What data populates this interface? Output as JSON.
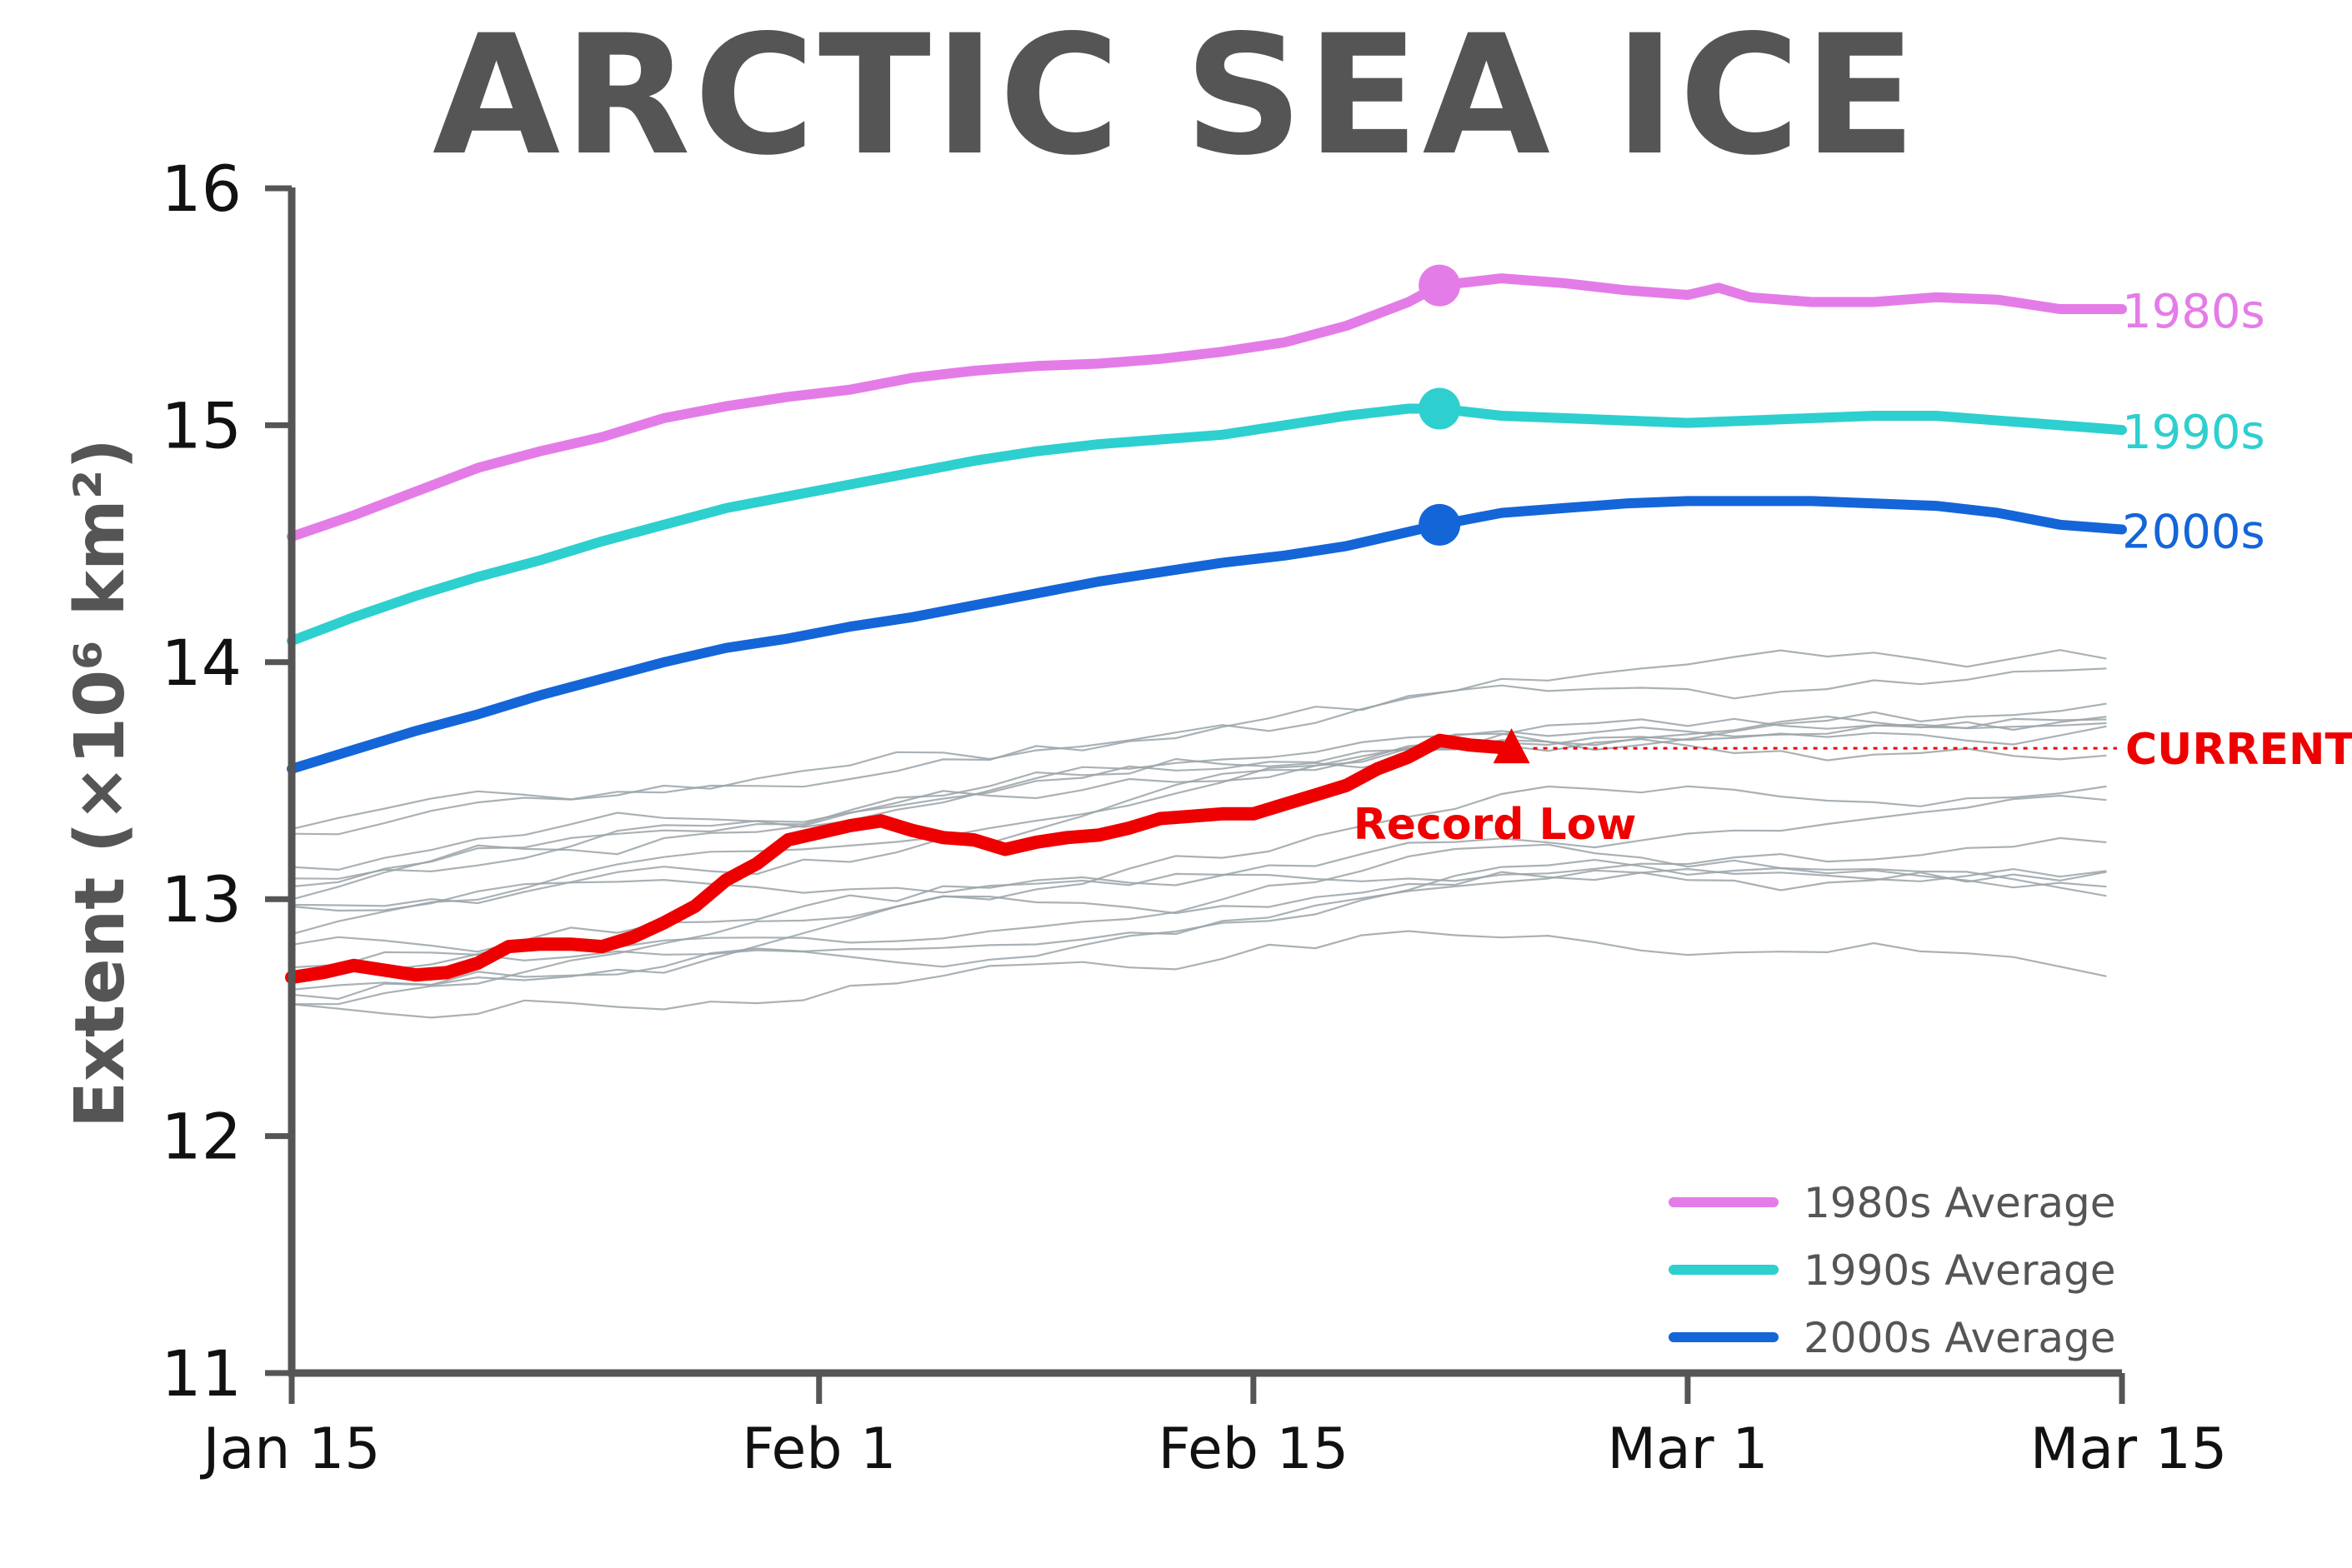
{
  "chart_data": {
    "type": "line",
    "title": "ARCTIC SEA ICE",
    "ylabel": "Extent (×10⁶ km²)",
    "ylim": [
      11,
      16
    ],
    "yticks": [
      "11",
      "12",
      "13",
      "14",
      "15",
      "16"
    ],
    "x_range_days": [
      0,
      59
    ],
    "xticks": [
      {
        "label": "Jan 15",
        "day": 0
      },
      {
        "label": "Feb 1",
        "day": 17
      },
      {
        "label": "Feb 15",
        "day": 31
      },
      {
        "label": "Mar 1",
        "day": 45
      },
      {
        "label": "Mar 15",
        "day": 59
      }
    ],
    "series": [
      {
        "name": "1980s Average",
        "end_label": "1980s",
        "color": "#e47ce8",
        "marker_day": 37,
        "points": [
          [
            0,
            14.53
          ],
          [
            2,
            14.62
          ],
          [
            4,
            14.72
          ],
          [
            6,
            14.82
          ],
          [
            8,
            14.89
          ],
          [
            10,
            14.95
          ],
          [
            12,
            15.03
          ],
          [
            14,
            15.08
          ],
          [
            16,
            15.12
          ],
          [
            18,
            15.15
          ],
          [
            20,
            15.2
          ],
          [
            22,
            15.23
          ],
          [
            24,
            15.25
          ],
          [
            26,
            15.26
          ],
          [
            28,
            15.28
          ],
          [
            30,
            15.31
          ],
          [
            32,
            15.35
          ],
          [
            34,
            15.42
          ],
          [
            36,
            15.52
          ],
          [
            37,
            15.59
          ],
          [
            39,
            15.62
          ],
          [
            41,
            15.6
          ],
          [
            43,
            15.57
          ],
          [
            45,
            15.55
          ],
          [
            46,
            15.58
          ],
          [
            47,
            15.54
          ],
          [
            49,
            15.52
          ],
          [
            51,
            15.52
          ],
          [
            53,
            15.54
          ],
          [
            55,
            15.53
          ],
          [
            57,
            15.49
          ],
          [
            59,
            15.49
          ]
        ]
      },
      {
        "name": "1990s Average",
        "end_label": "1990s",
        "color": "#2ecfcf",
        "marker_day": 37,
        "points": [
          [
            0,
            14.09
          ],
          [
            2,
            14.19
          ],
          [
            4,
            14.28
          ],
          [
            6,
            14.36
          ],
          [
            8,
            14.43
          ],
          [
            10,
            14.51
          ],
          [
            12,
            14.58
          ],
          [
            14,
            14.65
          ],
          [
            16,
            14.7
          ],
          [
            18,
            14.75
          ],
          [
            20,
            14.8
          ],
          [
            22,
            14.85
          ],
          [
            24,
            14.89
          ],
          [
            26,
            14.92
          ],
          [
            28,
            14.94
          ],
          [
            30,
            14.96
          ],
          [
            32,
            15.0
          ],
          [
            34,
            15.04
          ],
          [
            36,
            15.07
          ],
          [
            37,
            15.07
          ],
          [
            39,
            15.04
          ],
          [
            41,
            15.03
          ],
          [
            43,
            15.02
          ],
          [
            45,
            15.01
          ],
          [
            47,
            15.02
          ],
          [
            49,
            15.03
          ],
          [
            51,
            15.04
          ],
          [
            53,
            15.04
          ],
          [
            55,
            15.02
          ],
          [
            57,
            15.0
          ],
          [
            59,
            14.98
          ]
        ]
      },
      {
        "name": "2000s Average",
        "end_label": "2000s",
        "color": "#1465d8",
        "marker_day": 37,
        "points": [
          [
            0,
            13.55
          ],
          [
            2,
            13.63
          ],
          [
            4,
            13.71
          ],
          [
            6,
            13.78
          ],
          [
            8,
            13.86
          ],
          [
            10,
            13.93
          ],
          [
            12,
            14.0
          ],
          [
            14,
            14.06
          ],
          [
            16,
            14.1
          ],
          [
            18,
            14.15
          ],
          [
            20,
            14.19
          ],
          [
            22,
            14.24
          ],
          [
            24,
            14.29
          ],
          [
            26,
            14.34
          ],
          [
            28,
            14.38
          ],
          [
            30,
            14.42
          ],
          [
            32,
            14.45
          ],
          [
            34,
            14.49
          ],
          [
            36,
            14.55
          ],
          [
            37,
            14.58
          ],
          [
            39,
            14.63
          ],
          [
            41,
            14.65
          ],
          [
            43,
            14.67
          ],
          [
            45,
            14.68
          ],
          [
            47,
            14.68
          ],
          [
            49,
            14.68
          ],
          [
            51,
            14.67
          ],
          [
            53,
            14.66
          ],
          [
            55,
            14.63
          ],
          [
            57,
            14.58
          ],
          [
            59,
            14.56
          ]
        ]
      },
      {
        "name": "Current",
        "color": "#ee0000",
        "points": [
          [
            0,
            12.67
          ],
          [
            1,
            12.69
          ],
          [
            2,
            12.72
          ],
          [
            3,
            12.7
          ],
          [
            4,
            12.68
          ],
          [
            5,
            12.69
          ],
          [
            6,
            12.73
          ],
          [
            7,
            12.8
          ],
          [
            8,
            12.81
          ],
          [
            9,
            12.81
          ],
          [
            10,
            12.8
          ],
          [
            11,
            12.84
          ],
          [
            12,
            12.9
          ],
          [
            13,
            12.97
          ],
          [
            14,
            13.08
          ],
          [
            15,
            13.15
          ],
          [
            16,
            13.25
          ],
          [
            17,
            13.28
          ],
          [
            18,
            13.31
          ],
          [
            19,
            13.33
          ],
          [
            20,
            13.29
          ],
          [
            21,
            13.26
          ],
          [
            22,
            13.25
          ],
          [
            23,
            13.21
          ],
          [
            24,
            13.24
          ],
          [
            25,
            13.26
          ],
          [
            26,
            13.27
          ],
          [
            27,
            13.3
          ],
          [
            28,
            13.34
          ],
          [
            29,
            13.35
          ],
          [
            30,
            13.36
          ],
          [
            31,
            13.36
          ],
          [
            32,
            13.4
          ],
          [
            33,
            13.44
          ],
          [
            34,
            13.48
          ],
          [
            35,
            13.55
          ],
          [
            36,
            13.6
          ],
          [
            37,
            13.67
          ],
          [
            38,
            13.65
          ],
          [
            39,
            13.64
          ]
        ]
      }
    ],
    "current_end": {
      "day": 39,
      "value": 13.64,
      "label": "CURRENT"
    },
    "annotation": "Record Low",
    "background_years_color": "#9aa3a8",
    "legend": [
      {
        "label": "1980s Average",
        "color": "#e47ce8"
      },
      {
        "label": "1990s Average",
        "color": "#2ecfcf"
      },
      {
        "label": "2000s Average",
        "color": "#1465d8"
      }
    ],
    "legend_position": "bottom-right"
  }
}
